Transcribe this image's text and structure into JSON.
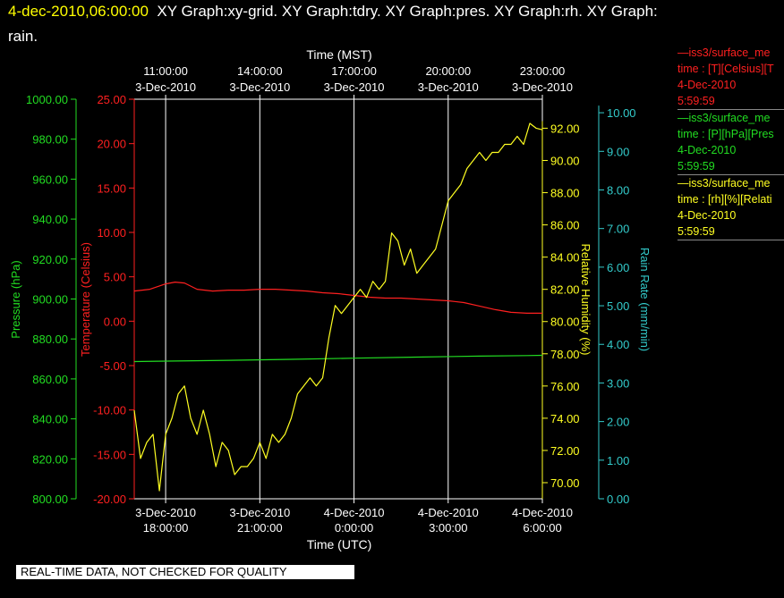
{
  "header": {
    "timestamp": "4-dec-2010,06:00:00",
    "title_rest": "XY Graph:xy-grid.  XY Graph:tdry.  XY Graph:pres.  XY Graph:rh.  XY Graph:",
    "title_line2": "rain."
  },
  "legend": [
    {
      "line1": "—iss3/surface_me",
      "line2": "time : [T][Celsius][T",
      "line3": "4-Dec-2010",
      "line4": "5:59:59",
      "color": "#ff2020"
    },
    {
      "line1": "—iss3/surface_me",
      "line2": "time : [P][hPa][Pres",
      "line3": "4-Dec-2010",
      "line4": "5:59:59",
      "color": "#22dd22"
    },
    {
      "line1": "—iss3/surface_me",
      "line2": "time : [rh][%][Relati",
      "line3": "4-Dec-2010",
      "line4": "5:59:59",
      "color": "#ffff22"
    }
  ],
  "footer": {
    "quality_note": "REAL-TIME DATA, NOT CHECKED FOR QUALITY"
  },
  "colors": {
    "background": "#000000",
    "grid": "#ffffff",
    "temperature": "#ff2020",
    "pressure": "#22dd22",
    "humidity": "#ffff22",
    "rain": "#33cccc"
  },
  "chart_data": {
    "type": "line",
    "grid": true,
    "x_range": [
      "3-Dec-2010 17:00:00",
      "4-Dec-2010 06:00:00"
    ],
    "xlabel_bottom": "Time (UTC)",
    "xlabel_top": "Time (MST)",
    "xticks_bottom": [
      {
        "date": "3-Dec-2010",
        "time": "18:00:00"
      },
      {
        "date": "3-Dec-2010",
        "time": "21:00:00"
      },
      {
        "date": "4-Dec-2010",
        "time": "0:00:00"
      },
      {
        "date": "4-Dec-2010",
        "time": "3:00:00"
      },
      {
        "date": "4-Dec-2010",
        "time": "6:00:00"
      }
    ],
    "xticks_top": [
      {
        "time": "11:00:00",
        "date": "3-Dec-2010"
      },
      {
        "time": "14:00:00",
        "date": "3-Dec-2010"
      },
      {
        "time": "17:00:00",
        "date": "3-Dec-2010"
      },
      {
        "time": "20:00:00",
        "date": "3-Dec-2010"
      },
      {
        "time": "23:00:00",
        "date": "3-Dec-2010"
      }
    ],
    "axes": {
      "pressure": {
        "label": "Pressure (hPa)",
        "range": [
          800,
          1000
        ],
        "ticks": [
          "800.00",
          "820.00",
          "840.00",
          "860.00",
          "880.00",
          "900.00",
          "920.00",
          "940.00",
          "960.00",
          "980.00",
          "1000.00"
        ]
      },
      "temperature": {
        "label": "Temperature (Celsius)",
        "range": [
          -20,
          25
        ],
        "ticks": [
          "-20.00",
          "-15.00",
          "-10.00",
          "-5.00",
          "0.00",
          "5.00",
          "10.00",
          "15.00",
          "20.00",
          "25.00"
        ]
      },
      "humidity": {
        "label": "Relative Humidity (%)",
        "range": [
          69,
          93.8
        ],
        "ticks": [
          "70.00",
          "72.00",
          "74.00",
          "76.00",
          "78.00",
          "80.00",
          "82.00",
          "84.00",
          "86.00",
          "88.00",
          "90.00",
          "92.00"
        ]
      },
      "rain": {
        "label": "Rain Rate (mm/min)",
        "range": [
          0,
          10.35
        ],
        "ticks": [
          "0.00",
          "1.00",
          "2.00",
          "3.00",
          "4.00",
          "5.00",
          "6.00",
          "7.00",
          "8.00",
          "9.00",
          "10.00"
        ]
      }
    },
    "series": [
      {
        "name": "iss3/surface_me T",
        "axis": "temperature",
        "x": [
          17.0,
          17.5,
          18.0,
          18.3,
          18.6,
          19.0,
          19.5,
          20.0,
          20.5,
          21.0,
          21.5,
          22.0,
          22.5,
          23.0,
          23.5,
          24.0,
          24.5,
          25.0,
          25.5,
          26.0,
          26.5,
          27.0,
          27.5,
          28.0,
          28.5,
          29.0,
          29.5,
          30.0
        ],
        "values": [
          3.4,
          3.6,
          4.2,
          4.4,
          4.3,
          3.6,
          3.4,
          3.5,
          3.5,
          3.6,
          3.6,
          3.5,
          3.4,
          3.2,
          3.1,
          2.9,
          2.7,
          2.6,
          2.6,
          2.5,
          2.4,
          2.3,
          2.1,
          1.7,
          1.3,
          1.0,
          0.9,
          0.9
        ]
      },
      {
        "name": "iss3/surface_me P",
        "axis": "pressure",
        "x": [
          17.0,
          18.0,
          20.0,
          22.0,
          24.0,
          26.0,
          28.0,
          29.5,
          30.0
        ],
        "values": [
          868.7,
          868.9,
          869.3,
          869.8,
          870.4,
          870.9,
          871.4,
          871.7,
          871.8
        ],
        "linestyle": "solid"
      },
      {
        "name": "iss3/surface_me rh",
        "axis": "humidity",
        "x": [
          17.0,
          17.2,
          17.4,
          17.6,
          17.8,
          18.0,
          18.2,
          18.4,
          18.6,
          18.8,
          19.0,
          19.2,
          19.4,
          19.6,
          19.8,
          20.0,
          20.2,
          20.4,
          20.6,
          20.8,
          21.0,
          21.2,
          21.4,
          21.6,
          21.8,
          22.0,
          22.2,
          22.4,
          22.6,
          22.8,
          23.0,
          23.2,
          23.4,
          23.6,
          23.8,
          24.0,
          24.2,
          24.4,
          24.6,
          24.8,
          25.0,
          25.2,
          25.4,
          25.6,
          25.8,
          26.0,
          26.2,
          26.4,
          26.6,
          26.8,
          27.0,
          27.2,
          27.4,
          27.6,
          27.8,
          28.0,
          28.2,
          28.4,
          28.6,
          28.8,
          29.0,
          29.2,
          29.4,
          29.6,
          29.8,
          30.0
        ],
        "values": [
          74.5,
          71.5,
          72.5,
          73.0,
          69.5,
          73.0,
          74.0,
          75.5,
          76.0,
          74.0,
          73.0,
          74.5,
          73.0,
          71.0,
          72.5,
          72.0,
          70.5,
          71.0,
          71.0,
          71.5,
          72.5,
          71.5,
          73.0,
          72.5,
          73.0,
          74.0,
          75.5,
          76.0,
          76.5,
          76.0,
          76.5,
          79.0,
          81.0,
          80.5,
          81.0,
          81.5,
          82.0,
          81.5,
          82.5,
          82.0,
          82.5,
          85.5,
          85.0,
          83.5,
          84.5,
          83.0,
          83.5,
          84.0,
          84.5,
          86.0,
          87.5,
          88.0,
          88.5,
          89.5,
          90.0,
          90.5,
          90.0,
          90.5,
          90.5,
          91.0,
          91.0,
          91.5,
          91.0,
          92.3,
          92.0,
          91.9
        ]
      }
    ]
  }
}
